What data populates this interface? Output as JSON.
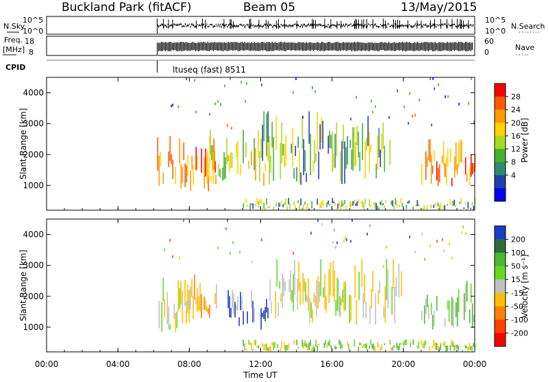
{
  "header": {
    "station": "Buckland Park (fitACF)",
    "beam": "Beam 05",
    "date": "13/May/2015"
  },
  "top_panels": {
    "nsky_label": "N.Sky",
    "nsky_ticks": [
      "10^5",
      "10^0"
    ],
    "nsearch_label": "N.Search",
    "nsearch_ticks": [
      "10^5",
      "10^0"
    ],
    "freq_label": "Freq.",
    "freq_unit": "[MHz]",
    "freq_ticks": [
      "18",
      "8"
    ],
    "nave_label": "Nave",
    "nave_ticks": [
      "60",
      "0"
    ],
    "cpid_label": "CPID",
    "cpid_value": "ltuseq (fast) 8511"
  },
  "colorbars": {
    "power": {
      "label": "Power [dB]",
      "ticks": [
        "28",
        "24",
        "20",
        "16",
        "12",
        "8",
        "4"
      ],
      "colors": [
        "#ff0000",
        "#ff5a00",
        "#ff9a00",
        "#ffd200",
        "#a8d820",
        "#44b030",
        "#2e8b6e",
        "#2040a8",
        "#0000ff"
      ]
    },
    "velocity": {
      "label": "Velocity [m s⁻¹]",
      "ticks": [
        "200",
        "100",
        "50",
        "15",
        "-15",
        "-50",
        "-100",
        "-200"
      ],
      "colors": [
        "#1a3cc8",
        "#2e6e38",
        "#4ab830",
        "#66d820",
        "#c0c0c0",
        "#ffbf00",
        "#ff8000",
        "#ff4000",
        "#ff0000"
      ]
    }
  },
  "chart_data": [
    {
      "type": "heatmap",
      "name": "power",
      "ylabel": "Slant Range [km]",
      "yticks": [
        "4000",
        "3000",
        "2000",
        "1000"
      ],
      "ylim": [
        200,
        4500
      ],
      "xlim": [
        0,
        24
      ],
      "xticks": [
        "00:00",
        "04:00",
        "08:00",
        "12:00",
        "16:00",
        "20:00",
        "00:00"
      ],
      "data_start_hour": 6.2,
      "regions": [
        {
          "t0": 6.2,
          "t1": 9.5,
          "r0": 800,
          "r1": 2600,
          "colors": [
            "#ff0000",
            "#ff5a00",
            "#ff9a00",
            "#ffd200"
          ]
        },
        {
          "t0": 9.0,
          "t1": 12.5,
          "r0": 900,
          "r1": 2800,
          "colors": [
            "#ff9a00",
            "#ffd200",
            "#a8d820",
            "#44b030"
          ]
        },
        {
          "t0": 12.0,
          "t1": 19.5,
          "r0": 1000,
          "r1": 3400,
          "colors": [
            "#44b030",
            "#2e8b6e",
            "#2040a8",
            "#a8d820",
            "#ffd200"
          ]
        },
        {
          "t0": 21.0,
          "t1": 24.0,
          "r0": 900,
          "r1": 2500,
          "colors": [
            "#ff0000",
            "#ff5a00",
            "#ff9a00",
            "#ffd200"
          ]
        },
        {
          "t0": 11.0,
          "t1": 24.0,
          "r0": 200,
          "r1": 600,
          "colors": [
            "#a8d820",
            "#44b030",
            "#ffd200",
            "#2040a8"
          ]
        },
        {
          "t0": 6.5,
          "t1": 24.0,
          "r0": 2500,
          "r1": 4500,
          "colors": [
            "#2040a8",
            "#0000ff",
            "#2e8b6e",
            "#44b030",
            "#ff5a00"
          ]
        }
      ]
    },
    {
      "type": "heatmap",
      "name": "velocity",
      "ylabel": "Slant Range [km]",
      "yticks": [
        "4000",
        "3000",
        "2000",
        "1000"
      ],
      "ylim": [
        200,
        4500
      ],
      "xlim": [
        0,
        24
      ],
      "xticks": [
        "00:00",
        "04:00",
        "08:00",
        "12:00",
        "16:00",
        "20:00",
        "00:00"
      ],
      "xlabel": "Time UT",
      "data_start_hour": 6.2,
      "regions": [
        {
          "t0": 6.2,
          "t1": 8.0,
          "r0": 800,
          "r1": 2600,
          "colors": [
            "#c0c0c0",
            "#66d820",
            "#ffbf00"
          ]
        },
        {
          "t0": 7.5,
          "t1": 9.5,
          "r0": 1000,
          "r1": 2700,
          "colors": [
            "#ffbf00",
            "#ff8000",
            "#c0c0c0"
          ]
        },
        {
          "t0": 10.0,
          "t1": 12.5,
          "r0": 900,
          "r1": 2200,
          "colors": [
            "#1a3cc8",
            "#2040a8",
            "#c0c0c0"
          ]
        },
        {
          "t0": 12.5,
          "t1": 20.0,
          "r0": 1000,
          "r1": 3200,
          "colors": [
            "#c0c0c0",
            "#66d820",
            "#ffbf00"
          ]
        },
        {
          "t0": 21.0,
          "t1": 24.0,
          "r0": 900,
          "r1": 2500,
          "colors": [
            "#66d820",
            "#4ab830",
            "#c0c0c0"
          ]
        },
        {
          "t0": 11.0,
          "t1": 24.0,
          "r0": 200,
          "r1": 600,
          "colors": [
            "#66d820",
            "#4ab830",
            "#ffbf00"
          ]
        },
        {
          "t0": 6.5,
          "t1": 24.0,
          "r0": 2600,
          "r1": 4500,
          "colors": [
            "#1a3cc8",
            "#ffbf00",
            "#ff4000",
            "#66d820",
            "#c0c0c0"
          ]
        }
      ]
    }
  ]
}
